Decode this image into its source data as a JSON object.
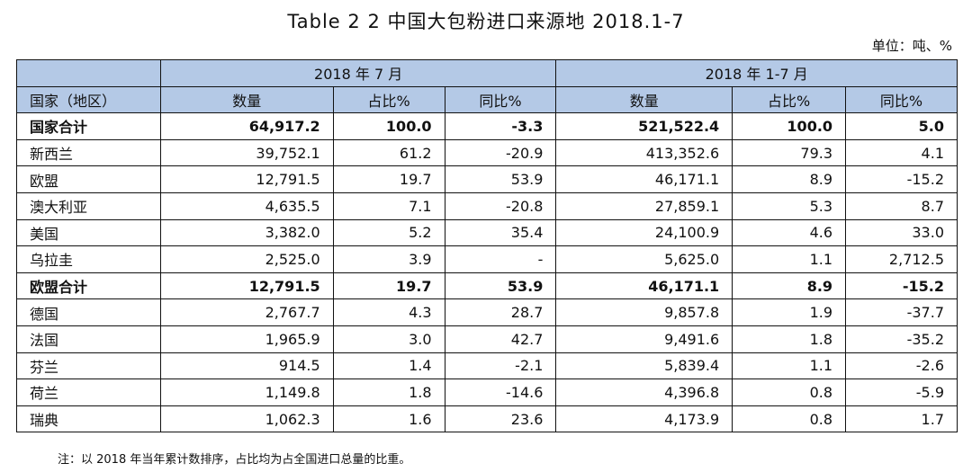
{
  "title": "Table 2 2  中国大包粉进口来源地 2018.1-7",
  "unit": "单位：吨、%",
  "period_labels": {
    "left": "2018 年 7 月",
    "right": "2018 年 1-7 月"
  },
  "columns": {
    "country": "国家（地区）",
    "qty": "数量",
    "share": "占比%",
    "yoy": "同比%"
  },
  "rows": [
    {
      "name": "国家合计",
      "qty_m": "64,917.2",
      "share_m": "100.0",
      "yoy_m": "-3.3",
      "qty_ytd": "521,522.4",
      "share_ytd": "100.0",
      "yoy_ytd": "5.0",
      "bold": true
    },
    {
      "name": "新西兰",
      "qty_m": "39,752.1",
      "share_m": "61.2",
      "yoy_m": "-20.9",
      "qty_ytd": "413,352.6",
      "share_ytd": "79.3",
      "yoy_ytd": "4.1",
      "bold": false
    },
    {
      "name": "欧盟",
      "qty_m": "12,791.5",
      "share_m": "19.7",
      "yoy_m": "53.9",
      "qty_ytd": "46,171.1",
      "share_ytd": "8.9",
      "yoy_ytd": "-15.2",
      "bold": false
    },
    {
      "name": "澳大利亚",
      "qty_m": "4,635.5",
      "share_m": "7.1",
      "yoy_m": "-20.8",
      "qty_ytd": "27,859.1",
      "share_ytd": "5.3",
      "yoy_ytd": "8.7",
      "bold": false
    },
    {
      "name": "美国",
      "qty_m": "3,382.0",
      "share_m": "5.2",
      "yoy_m": "35.4",
      "qty_ytd": "24,100.9",
      "share_ytd": "4.6",
      "yoy_ytd": "33.0",
      "bold": false
    },
    {
      "name": "乌拉圭",
      "qty_m": "2,525.0",
      "share_m": "3.9",
      "yoy_m": "-",
      "qty_ytd": "5,625.0",
      "share_ytd": "1.1",
      "yoy_ytd": "2,712.5",
      "bold": false
    },
    {
      "name": "欧盟合计",
      "qty_m": "12,791.5",
      "share_m": "19.7",
      "yoy_m": "53.9",
      "qty_ytd": "46,171.1",
      "share_ytd": "8.9",
      "yoy_ytd": "-15.2",
      "bold": true
    },
    {
      "name": "德国",
      "qty_m": "2,767.7",
      "share_m": "4.3",
      "yoy_m": "28.7",
      "qty_ytd": "9,857.8",
      "share_ytd": "1.9",
      "yoy_ytd": "-37.7",
      "bold": false
    },
    {
      "name": "法国",
      "qty_m": "1,965.9",
      "share_m": "3.0",
      "yoy_m": "42.7",
      "qty_ytd": "9,491.6",
      "share_ytd": "1.8",
      "yoy_ytd": "-35.2",
      "bold": false
    },
    {
      "name": "芬兰",
      "qty_m": "914.5",
      "share_m": "1.4",
      "yoy_m": "-2.1",
      "qty_ytd": "5,839.4",
      "share_ytd": "1.1",
      "yoy_ytd": "-2.6",
      "bold": false
    },
    {
      "name": "荷兰",
      "qty_m": "1,149.8",
      "share_m": "1.8",
      "yoy_m": "-14.6",
      "qty_ytd": "4,396.8",
      "share_ytd": "0.8",
      "yoy_ytd": "-5.9",
      "bold": false
    },
    {
      "name": "瑞典",
      "qty_m": "1,062.3",
      "share_m": "1.6",
      "yoy_m": "23.6",
      "qty_ytd": "4,173.9",
      "share_ytd": "0.8",
      "yoy_ytd": "1.7",
      "bold": false
    }
  ],
  "note": "注：以 2018 年当年累计数排序，占比均为占全国进口总量的比重。",
  "colors": {
    "header_bg": "#b4c9e6",
    "border": "#111111"
  }
}
